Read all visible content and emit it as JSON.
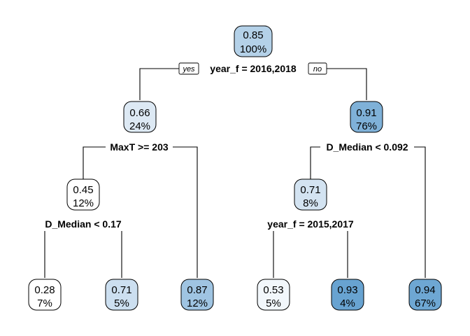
{
  "tree": {
    "nodes": [
      {
        "id": "root",
        "value": "0.85",
        "percent": "100%",
        "color": "#b4d1e8"
      },
      {
        "id": "left",
        "value": "0.66",
        "percent": "24%",
        "color": "#dde9f4"
      },
      {
        "id": "right",
        "value": "0.91",
        "percent": "76%",
        "color": "#7fb1d8"
      },
      {
        "id": "left-left",
        "value": "0.45",
        "percent": "12%",
        "color": "#ffffff"
      },
      {
        "id": "right-left",
        "value": "0.71",
        "percent": "8%",
        "color": "#d3e3f1"
      },
      {
        "id": "leaf-1",
        "value": "0.28",
        "percent": "7%",
        "color": "#ffffff"
      },
      {
        "id": "leaf-2",
        "value": "0.71",
        "percent": "5%",
        "color": "#ccdff0"
      },
      {
        "id": "leaf-3",
        "value": "0.87",
        "percent": "12%",
        "color": "#9fc4e2"
      },
      {
        "id": "leaf-4",
        "value": "0.53",
        "percent": "5%",
        "color": "#f2f7fb"
      },
      {
        "id": "leaf-5",
        "value": "0.93",
        "percent": "4%",
        "color": "#68a3d1"
      },
      {
        "id": "leaf-6",
        "value": "0.94",
        "percent": "67%",
        "color": "#6ea7d3"
      }
    ],
    "splits": [
      {
        "id": "split-root",
        "label": "year_f = 2016,2018"
      },
      {
        "id": "split-left",
        "label": "MaxT >= 203"
      },
      {
        "id": "split-right",
        "label": "D_Median < 0.092"
      },
      {
        "id": "split-left-left",
        "label": "D_Median < 0.17"
      },
      {
        "id": "split-right-left",
        "label": "year_f = 2015,2017"
      }
    ],
    "yes_label": "yes",
    "no_label": "no"
  }
}
